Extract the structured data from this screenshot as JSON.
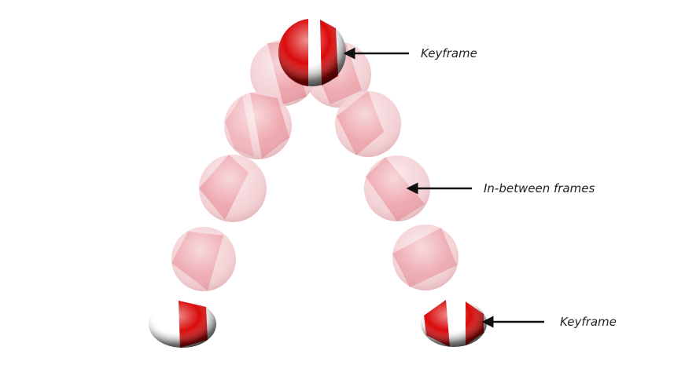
{
  "labels": {
    "keyframe_top": "Keyframe",
    "in_between": "In-between frames",
    "keyframe_bottom_right": "Keyframe"
  },
  "colors": {
    "ball_red": "#d90a0a",
    "ball_dark": "#111111",
    "ball_white": "#ffffff",
    "ghost_pink": "#e89aa2",
    "arrow": "#111111"
  }
}
